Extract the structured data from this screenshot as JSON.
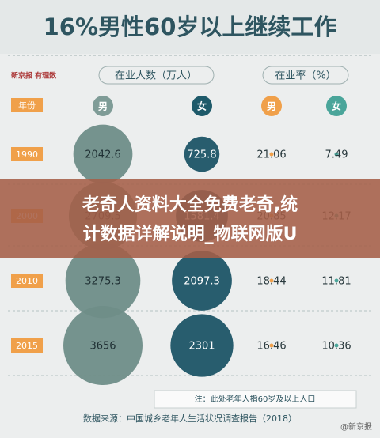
{
  "title": "16%男性60岁以上继续工作",
  "logo": "新京报 有理数",
  "headers": {
    "year": "年份",
    "employed": "在业人数（万人）",
    "rate": "在业率（%）"
  },
  "columns": [
    "男",
    "女",
    "男",
    "女"
  ],
  "rows": [
    {
      "year": "1990",
      "values": [
        2042.6,
        725.8,
        21.06,
        7.49
      ]
    },
    {
      "year": "2000",
      "values": [
        2709.5,
        1581.4,
        20.85,
        12.17
      ]
    },
    {
      "year": "2010",
      "values": [
        3275.3,
        2097.3,
        18.44,
        11.81
      ]
    },
    {
      "year": "2015",
      "values": [
        3656,
        2301,
        16.46,
        10.36
      ]
    }
  ],
  "note": "注：此处老年人指60岁及以上人口",
  "source": "数据来源：中国城乡老年人生活状况调查报告（2018）",
  "banner": [
    "老奇人资料大全免费老奇,统",
    "计数据详解说明_物联网版U"
  ],
  "watermark": "@新京报"
}
